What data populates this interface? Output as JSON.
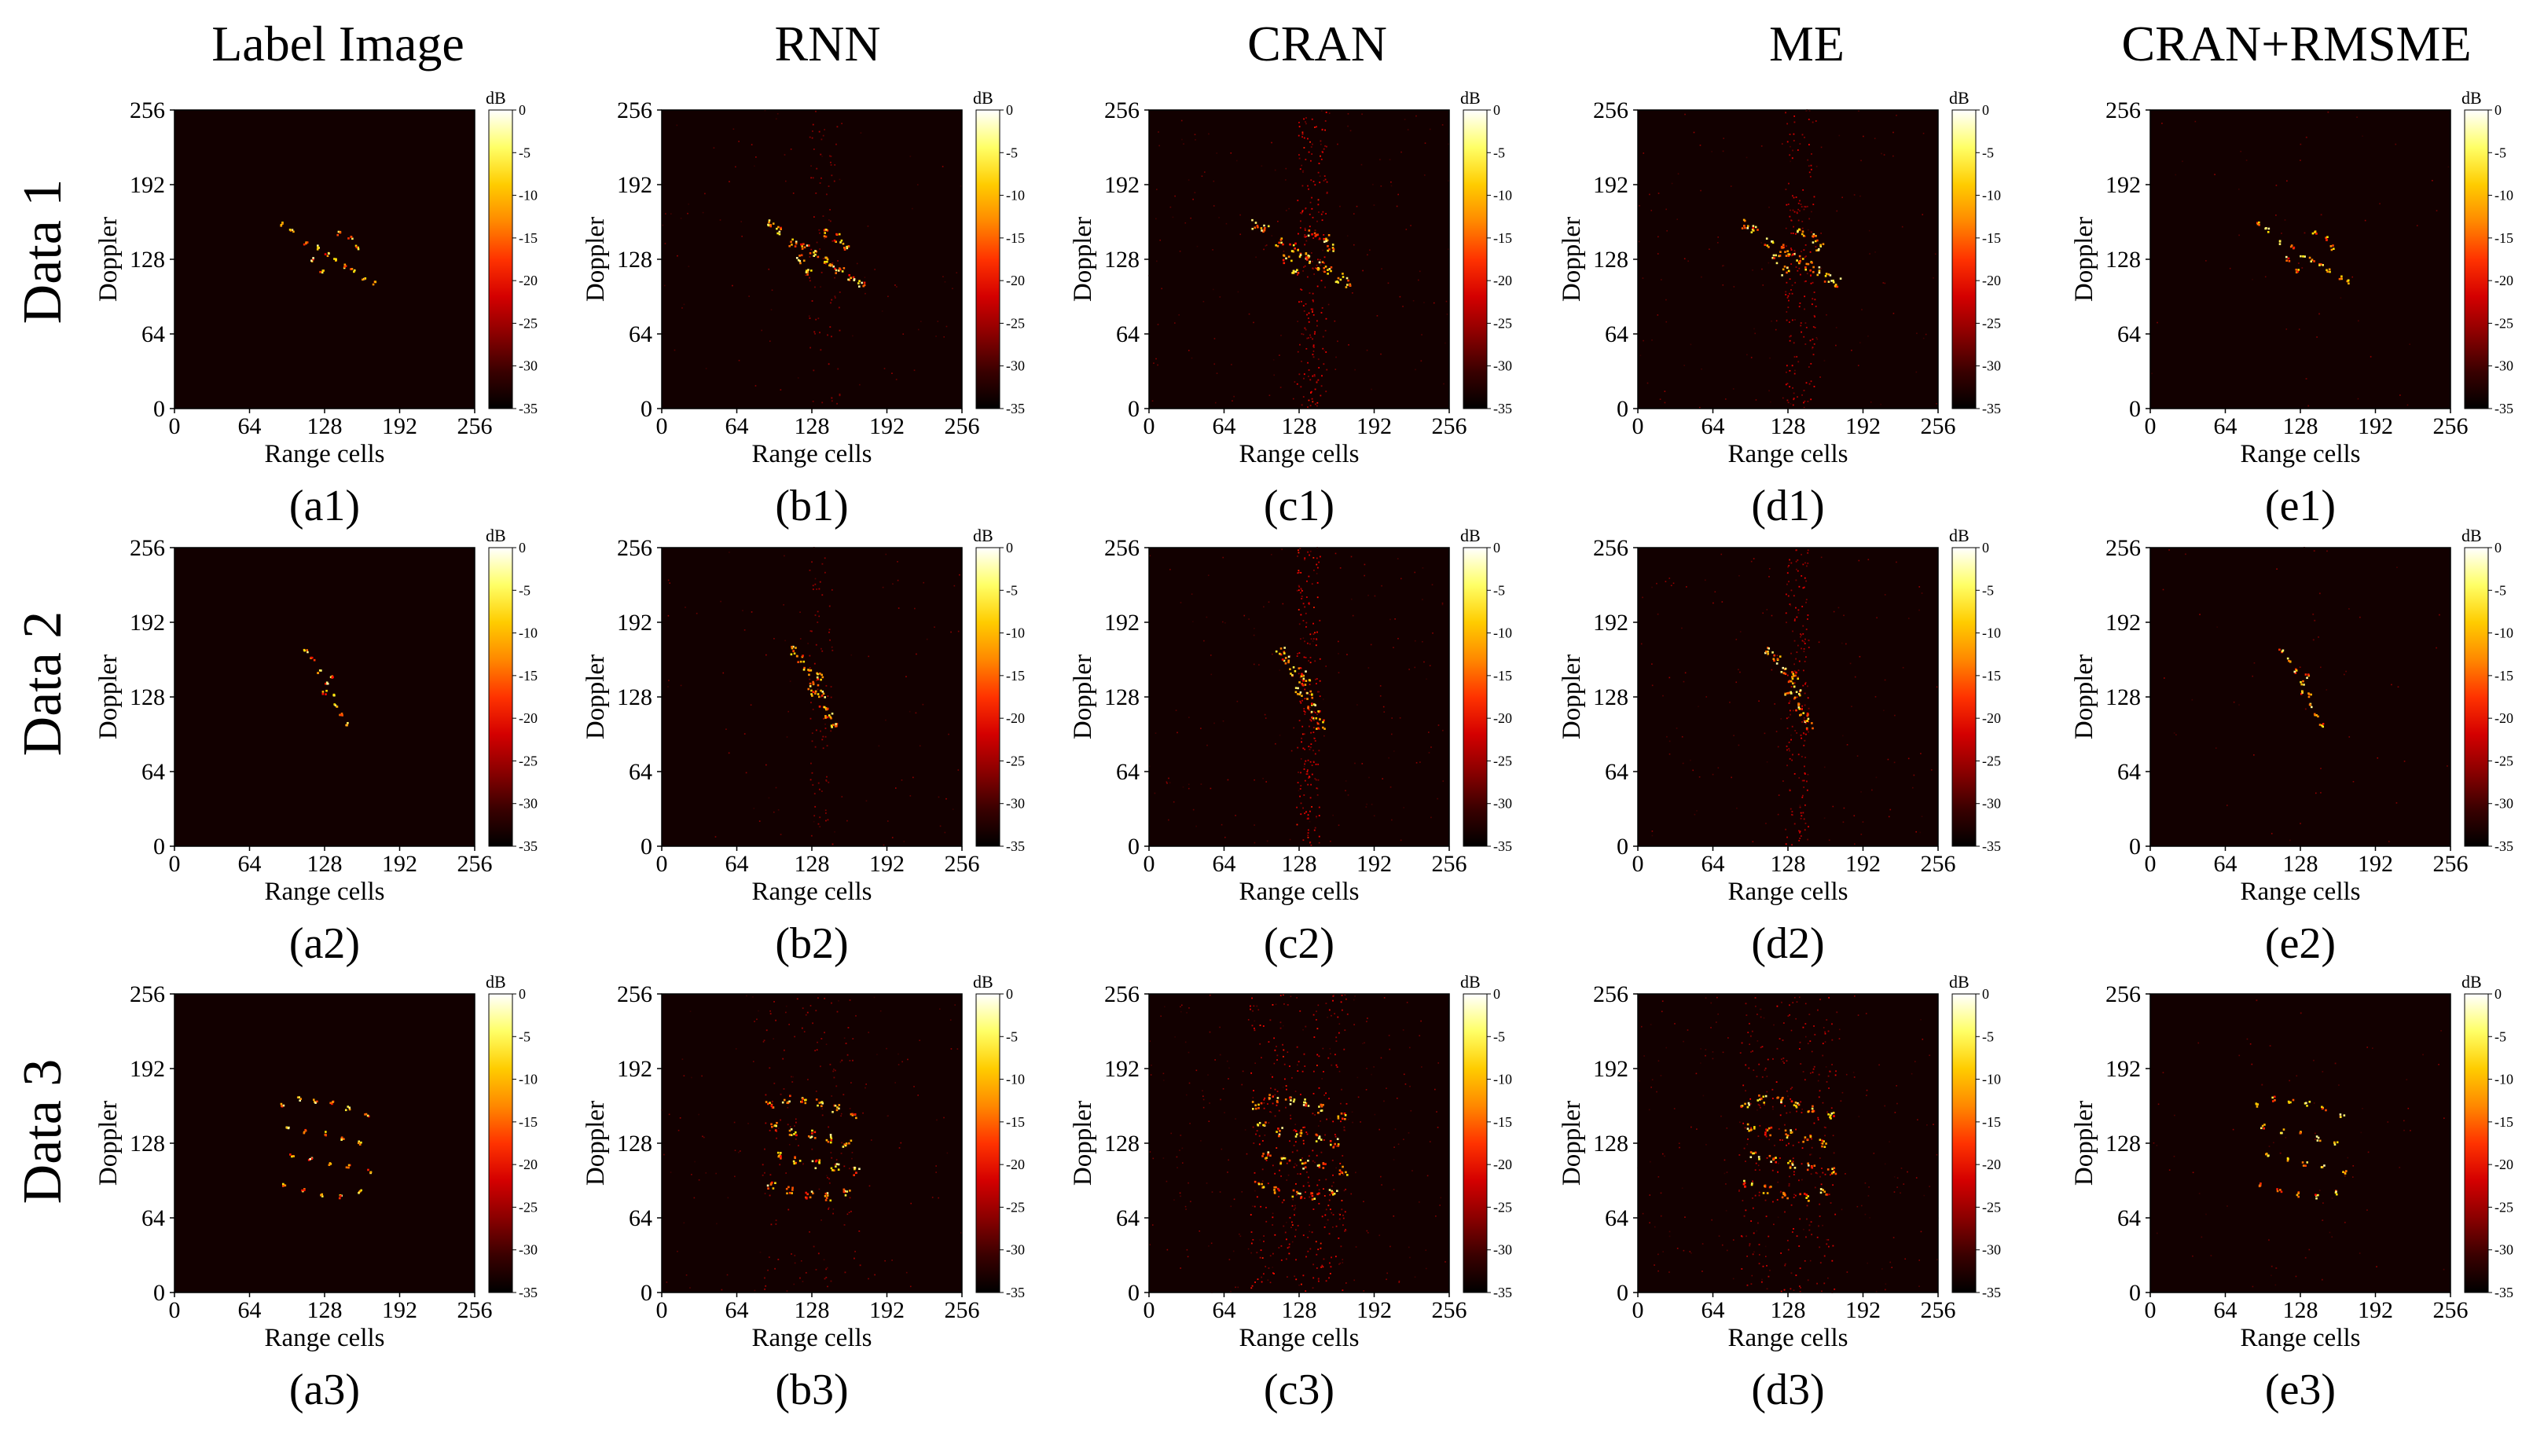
{
  "columns": [
    {
      "key": "a",
      "title": "Label Image"
    },
    {
      "key": "b",
      "title": "RNN"
    },
    {
      "key": "c",
      "title": "CRAN"
    },
    {
      "key": "d",
      "title": "ME"
    },
    {
      "key": "e",
      "title": "CRAN+RMSME"
    }
  ],
  "rows": [
    {
      "index": 1,
      "label": "Data 1"
    },
    {
      "index": 2,
      "label": "Data 2"
    },
    {
      "index": 3,
      "label": "Data 3"
    }
  ],
  "captions": [
    [
      "(a1)",
      "(b1)",
      "(c1)",
      "(d1)",
      "(e1)"
    ],
    [
      "(a2)",
      "(b2)",
      "(c2)",
      "(d2)",
      "(e2)"
    ],
    [
      "(a3)",
      "(b3)",
      "(c3)",
      "(d3)",
      "(e3)"
    ]
  ],
  "axes": {
    "xlabel": "Range cells",
    "ylabel": "Doppler",
    "xticks": [
      "0",
      "64",
      "128",
      "192",
      "256"
    ],
    "yticks": [
      "0",
      "64",
      "128",
      "192",
      "256"
    ],
    "range": [
      0,
      256
    ]
  },
  "colorbar": {
    "unit": "dB",
    "ticks": [
      "0",
      "-5",
      "-10",
      "-15",
      "-20",
      "-25",
      "-30",
      "-35"
    ],
    "range": [
      -35,
      0
    ],
    "colors": [
      "#000000",
      "#3a0000",
      "#8b0000",
      "#d40000",
      "#ff3300",
      "#ff8800",
      "#ffcc00",
      "#ffff66",
      "#ffffff"
    ]
  }
}
